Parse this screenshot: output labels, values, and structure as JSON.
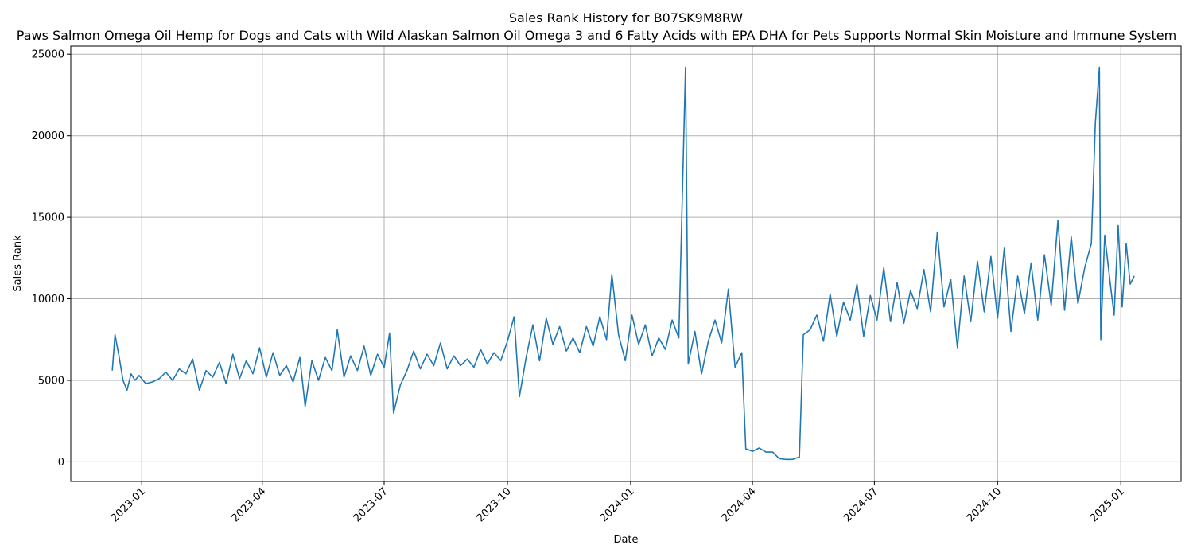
{
  "chart_data": {
    "type": "line",
    "title": "Sales Rank History for B07SK9M8RW",
    "subtitle": "Paws Salmon Omega Oil Hemp for Dogs and Cats with Wild Alaskan Salmon Oil Omega 3 and 6 Fatty Acids with EPA DHA for Pets Supports Normal Skin Moisture and Immune System",
    "xlabel": "Date",
    "ylabel": "Sales Rank",
    "xlim": [
      "2022-11-09",
      "2025-02-15"
    ],
    "ylim": [
      -1200,
      25500
    ],
    "grid": true,
    "color": "#1f77b4",
    "x_ticks": [
      "2023-01-01",
      "2023-04-01",
      "2023-07-01",
      "2023-10-01",
      "2024-01-01",
      "2024-04-01",
      "2024-07-01",
      "2024-10-01",
      "2025-01-01"
    ],
    "x_tick_labels": [
      "2023-01",
      "2023-04",
      "2023-07",
      "2023-10",
      "2024-01",
      "2024-04",
      "2024-07",
      "2024-10",
      "2025-01"
    ],
    "y_ticks": [
      0,
      5000,
      10000,
      15000,
      20000,
      25000
    ],
    "y_tick_labels": [
      "0",
      "5000",
      "10000",
      "15000",
      "20000",
      "25000"
    ],
    "series": [
      {
        "points": [
          [
            "2022-12-10",
            5600
          ],
          [
            "2022-12-12",
            7800
          ],
          [
            "2022-12-15",
            6500
          ],
          [
            "2022-12-18",
            5000
          ],
          [
            "2022-12-21",
            4400
          ],
          [
            "2022-12-24",
            5400
          ],
          [
            "2022-12-27",
            5000
          ],
          [
            "2022-12-30",
            5300
          ],
          [
            "2023-01-04",
            4800
          ],
          [
            "2023-01-09",
            4900
          ],
          [
            "2023-01-14",
            5100
          ],
          [
            "2023-01-19",
            5500
          ],
          [
            "2023-01-24",
            5000
          ],
          [
            "2023-01-29",
            5700
          ],
          [
            "2023-02-03",
            5400
          ],
          [
            "2023-02-08",
            6300
          ],
          [
            "2023-02-13",
            4400
          ],
          [
            "2023-02-18",
            5600
          ],
          [
            "2023-02-23",
            5200
          ],
          [
            "2023-02-28",
            6100
          ],
          [
            "2023-03-05",
            4800
          ],
          [
            "2023-03-10",
            6600
          ],
          [
            "2023-03-15",
            5100
          ],
          [
            "2023-03-20",
            6200
          ],
          [
            "2023-03-25",
            5400
          ],
          [
            "2023-03-30",
            7000
          ],
          [
            "2023-04-04",
            5200
          ],
          [
            "2023-04-09",
            6700
          ],
          [
            "2023-04-14",
            5300
          ],
          [
            "2023-04-19",
            5900
          ],
          [
            "2023-04-24",
            4900
          ],
          [
            "2023-04-29",
            6400
          ],
          [
            "2023-05-03",
            3400
          ],
          [
            "2023-05-08",
            6200
          ],
          [
            "2023-05-13",
            5000
          ],
          [
            "2023-05-18",
            6400
          ],
          [
            "2023-05-23",
            5600
          ],
          [
            "2023-05-27",
            8100
          ],
          [
            "2023-06-01",
            5200
          ],
          [
            "2023-06-06",
            6500
          ],
          [
            "2023-06-11",
            5600
          ],
          [
            "2023-06-16",
            7100
          ],
          [
            "2023-06-21",
            5300
          ],
          [
            "2023-06-26",
            6600
          ],
          [
            "2023-07-01",
            5800
          ],
          [
            "2023-07-05",
            7900
          ],
          [
            "2023-07-08",
            3000
          ],
          [
            "2023-07-13",
            4700
          ],
          [
            "2023-07-18",
            5600
          ],
          [
            "2023-07-23",
            6800
          ],
          [
            "2023-07-28",
            5700
          ],
          [
            "2023-08-02",
            6600
          ],
          [
            "2023-08-07",
            5900
          ],
          [
            "2023-08-12",
            7300
          ],
          [
            "2023-08-17",
            5700
          ],
          [
            "2023-08-22",
            6500
          ],
          [
            "2023-08-27",
            5900
          ],
          [
            "2023-09-01",
            6300
          ],
          [
            "2023-09-06",
            5800
          ],
          [
            "2023-09-11",
            6900
          ],
          [
            "2023-09-16",
            6000
          ],
          [
            "2023-09-21",
            6700
          ],
          [
            "2023-09-26",
            6200
          ],
          [
            "2023-10-01",
            7400
          ],
          [
            "2023-10-06",
            8900
          ],
          [
            "2023-10-10",
            4000
          ],
          [
            "2023-10-15",
            6400
          ],
          [
            "2023-10-20",
            8400
          ],
          [
            "2023-10-25",
            6200
          ],
          [
            "2023-10-30",
            8800
          ],
          [
            "2023-11-04",
            7200
          ],
          [
            "2023-11-09",
            8300
          ],
          [
            "2023-11-14",
            6800
          ],
          [
            "2023-11-19",
            7600
          ],
          [
            "2023-11-24",
            6700
          ],
          [
            "2023-11-29",
            8300
          ],
          [
            "2023-12-04",
            7100
          ],
          [
            "2023-12-09",
            8900
          ],
          [
            "2023-12-14",
            7500
          ],
          [
            "2023-12-18",
            11500
          ],
          [
            "2023-12-23",
            7800
          ],
          [
            "2023-12-28",
            6200
          ],
          [
            "2024-01-02",
            9000
          ],
          [
            "2024-01-07",
            7200
          ],
          [
            "2024-01-12",
            8400
          ],
          [
            "2024-01-17",
            6500
          ],
          [
            "2024-01-22",
            7600
          ],
          [
            "2024-01-27",
            6900
          ],
          [
            "2024-02-01",
            8700
          ],
          [
            "2024-02-06",
            7600
          ],
          [
            "2024-02-11",
            24200
          ],
          [
            "2024-02-13",
            6000
          ],
          [
            "2024-02-18",
            8000
          ],
          [
            "2024-02-23",
            5400
          ],
          [
            "2024-02-28",
            7400
          ],
          [
            "2024-03-04",
            8700
          ],
          [
            "2024-03-09",
            7300
          ],
          [
            "2024-03-14",
            10600
          ],
          [
            "2024-03-19",
            5800
          ],
          [
            "2024-03-24",
            6700
          ],
          [
            "2024-03-27",
            800
          ],
          [
            "2024-04-01",
            650
          ],
          [
            "2024-04-06",
            850
          ],
          [
            "2024-04-11",
            600
          ],
          [
            "2024-04-16",
            600
          ],
          [
            "2024-04-21",
            200
          ],
          [
            "2024-04-26",
            150
          ],
          [
            "2024-05-01",
            150
          ],
          [
            "2024-05-06",
            300
          ],
          [
            "2024-05-09",
            7800
          ],
          [
            "2024-05-14",
            8100
          ],
          [
            "2024-05-19",
            9000
          ],
          [
            "2024-05-24",
            7400
          ],
          [
            "2024-05-29",
            10300
          ],
          [
            "2024-06-03",
            7700
          ],
          [
            "2024-06-08",
            9800
          ],
          [
            "2024-06-13",
            8700
          ],
          [
            "2024-06-18",
            10900
          ],
          [
            "2024-06-23",
            7700
          ],
          [
            "2024-06-28",
            10200
          ],
          [
            "2024-07-03",
            8700
          ],
          [
            "2024-07-08",
            11900
          ],
          [
            "2024-07-13",
            8600
          ],
          [
            "2024-07-18",
            11000
          ],
          [
            "2024-07-23",
            8500
          ],
          [
            "2024-07-28",
            10500
          ],
          [
            "2024-08-02",
            9400
          ],
          [
            "2024-08-07",
            11800
          ],
          [
            "2024-08-12",
            9200
          ],
          [
            "2024-08-17",
            14100
          ],
          [
            "2024-08-22",
            9500
          ],
          [
            "2024-08-27",
            11200
          ],
          [
            "2024-09-01",
            7000
          ],
          [
            "2024-09-06",
            11400
          ],
          [
            "2024-09-11",
            8600
          ],
          [
            "2024-09-16",
            12300
          ],
          [
            "2024-09-21",
            9200
          ],
          [
            "2024-09-26",
            12600
          ],
          [
            "2024-10-01",
            8800
          ],
          [
            "2024-10-06",
            13100
          ],
          [
            "2024-10-11",
            8000
          ],
          [
            "2024-10-16",
            11400
          ],
          [
            "2024-10-21",
            9100
          ],
          [
            "2024-10-26",
            12200
          ],
          [
            "2024-10-31",
            8700
          ],
          [
            "2024-11-05",
            12700
          ],
          [
            "2024-11-10",
            9600
          ],
          [
            "2024-11-15",
            14800
          ],
          [
            "2024-11-20",
            9300
          ],
          [
            "2024-11-25",
            13800
          ],
          [
            "2024-11-30",
            9700
          ],
          [
            "2024-12-05",
            11900
          ],
          [
            "2024-12-10",
            13400
          ],
          [
            "2024-12-13",
            20800
          ],
          [
            "2024-12-16",
            24200
          ],
          [
            "2024-12-17",
            7500
          ],
          [
            "2024-12-20",
            13900
          ],
          [
            "2024-12-24",
            11000
          ],
          [
            "2024-12-27",
            9000
          ],
          [
            "2024-12-30",
            14500
          ],
          [
            "2025-01-02",
            9500
          ],
          [
            "2025-01-05",
            13400
          ],
          [
            "2025-01-08",
            10900
          ],
          [
            "2025-01-11",
            11400
          ]
        ]
      }
    ]
  }
}
